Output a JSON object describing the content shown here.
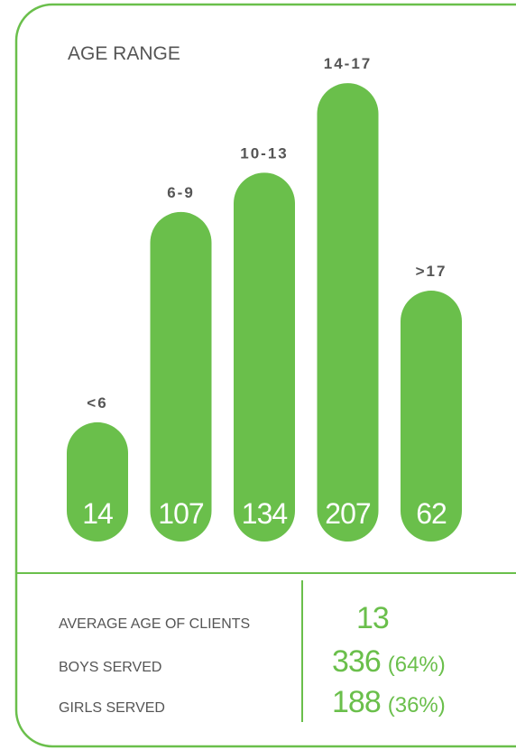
{
  "chart_data": {
    "type": "bar",
    "title": "AGE RANGE",
    "categories": [
      "<6",
      "6-9",
      "10-13",
      "14-17",
      ">17"
    ],
    "values": [
      14,
      107,
      134,
      207,
      62
    ],
    "color": "#6abf4b"
  },
  "stats": [
    {
      "label": "AVERAGE AGE OF CLIENTS",
      "value": 13
    },
    {
      "label": "BOYS SERVED",
      "value": 336,
      "share": "(64%)"
    },
    {
      "label": "GIRLS SERVED",
      "value": 188,
      "share": "(36%)"
    }
  ]
}
